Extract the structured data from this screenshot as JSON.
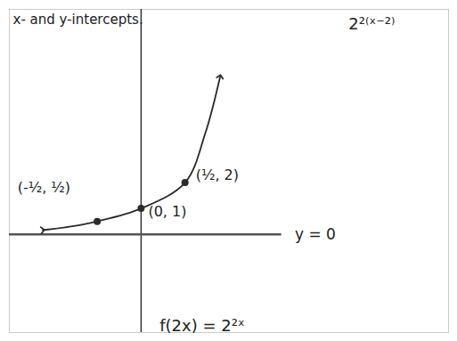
{
  "chart_data": {
    "type": "line",
    "x": [
      -1.12,
      -0.8,
      -0.5,
      0,
      0.5,
      0.73,
      0.9
    ],
    "values": [
      0.16,
      0.3,
      0.5,
      1,
      2,
      3.9,
      6.1
    ],
    "color": "#2b2b2b",
    "marker": "arrow",
    "xlim": [
      -1.5,
      3.5
    ],
    "ylim": [
      -3.8,
      8.7
    ],
    "xticks": [],
    "yticks": [],
    "tick_labels": false,
    "points": {
      "x": [
        -0.5,
        0,
        0.5
      ],
      "y": [
        0.5,
        1,
        2
      ],
      "labels": [
        "(-½, ½)",
        "(0, 1)",
        "(½, 2)"
      ]
    },
    "asymptote": {
      "y": 0,
      "label": "y = 0"
    },
    "annotations": [
      "x- and y-intercepts.",
      "2²⁽ˣ⁻²⁾",
      "f(2x) = 2²ˣ"
    ]
  }
}
